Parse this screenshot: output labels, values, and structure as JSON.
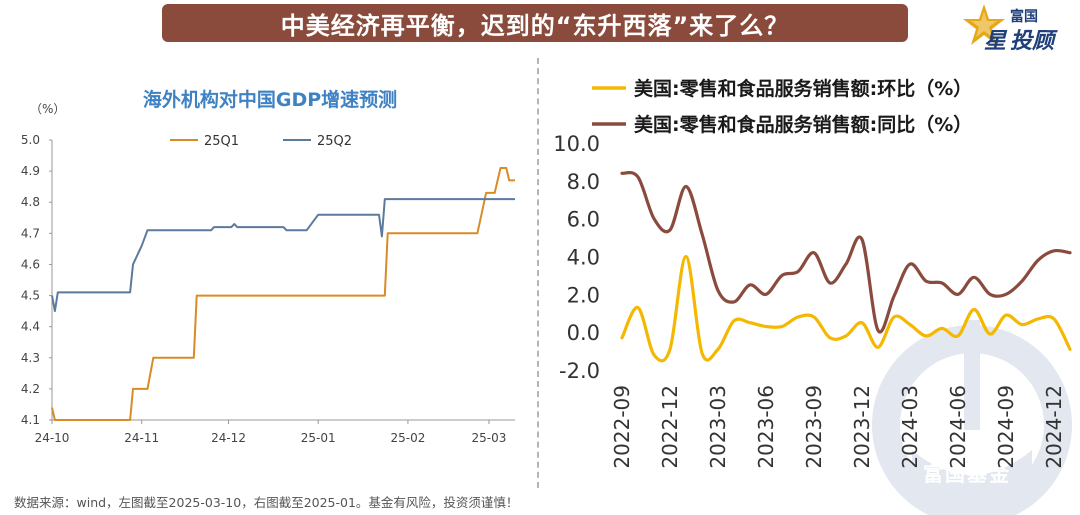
{
  "banner": {
    "title": "中美经济再平衡，迟到的“东升西落”来了么？"
  },
  "logo": {
    "line1": "富国",
    "line2_a": "星",
    "line2_b": "投顾"
  },
  "watermark": {
    "text": "富国基金"
  },
  "footer": {
    "note": "数据来源：wind，左图截至2025-03-10，右图截至2025-01。基金有风险，投资须谨慎！"
  },
  "chart_data": [
    {
      "type": "line",
      "title": "海外机构对中国GDP增速预测",
      "ylabel": "（%）",
      "ylim": [
        4.1,
        5.0
      ],
      "yticks": [
        "5.0",
        "4.9",
        "4.8",
        "4.7",
        "4.6",
        "4.5",
        "4.4",
        "4.3",
        "4.2",
        "4.1"
      ],
      "xticks": [
        "24-10",
        "24-11",
        "24-12",
        "25-01",
        "25-02",
        "25-03"
      ],
      "legend_position": "top",
      "grid": false,
      "series": [
        {
          "name": "25Q1",
          "color": "#d98b26",
          "points": [
            [
              "2024-10-01",
              4.14
            ],
            [
              "2024-10-02",
              4.1
            ],
            [
              "2024-10-28",
              4.1
            ],
            [
              "2024-10-29",
              4.2
            ],
            [
              "2024-11-03",
              4.2
            ],
            [
              "2024-11-05",
              4.3
            ],
            [
              "2024-11-19",
              4.3
            ],
            [
              "2024-11-20",
              4.5
            ],
            [
              "2025-01-24",
              4.5
            ],
            [
              "2025-01-25",
              4.7
            ],
            [
              "2025-02-25",
              4.7
            ],
            [
              "2025-02-28",
              4.83
            ],
            [
              "2025-03-03",
              4.83
            ],
            [
              "2025-03-05",
              4.91
            ],
            [
              "2025-03-07",
              4.91
            ],
            [
              "2025-03-08",
              4.87
            ],
            [
              "2025-03-10",
              4.87
            ]
          ]
        },
        {
          "name": "25Q2",
          "color": "#5b7a9c",
          "points": [
            [
              "2024-10-01",
              4.5
            ],
            [
              "2024-10-02",
              4.45
            ],
            [
              "2024-10-03",
              4.51
            ],
            [
              "2024-10-28",
              4.51
            ],
            [
              "2024-10-29",
              4.6
            ],
            [
              "2024-11-01",
              4.66
            ],
            [
              "2024-11-03",
              4.71
            ],
            [
              "2024-11-25",
              4.71
            ],
            [
              "2024-11-26",
              4.72
            ],
            [
              "2024-12-02",
              4.72
            ],
            [
              "2024-12-03",
              4.73
            ],
            [
              "2024-12-04",
              4.72
            ],
            [
              "2024-12-20",
              4.72
            ],
            [
              "2024-12-21",
              4.71
            ],
            [
              "2024-12-28",
              4.71
            ],
            [
              "2025-01-01",
              4.76
            ],
            [
              "2025-01-22",
              4.76
            ],
            [
              "2025-01-23",
              4.69
            ],
            [
              "2025-01-24",
              4.81
            ],
            [
              "2025-03-10",
              4.81
            ]
          ]
        }
      ]
    },
    {
      "type": "line",
      "ylim": [
        -2.0,
        10.0
      ],
      "yticks": [
        "10.0",
        "8.0",
        "6.0",
        "4.0",
        "2.0",
        "0.0",
        "-2.0"
      ],
      "xticks": [
        "2022-09",
        "2022-12",
        "2023-03",
        "2023-06",
        "2023-09",
        "2023-12",
        "2024-03",
        "2024-06",
        "2024-09",
        "2024-12"
      ],
      "legend_position": "top",
      "grid": false,
      "x": [
        "2022-09",
        "2022-10",
        "2022-11",
        "2022-12",
        "2023-01",
        "2023-02",
        "2023-03",
        "2023-04",
        "2023-05",
        "2023-06",
        "2023-07",
        "2023-08",
        "2023-09",
        "2023-10",
        "2023-11",
        "2023-12",
        "2024-01",
        "2024-02",
        "2024-03",
        "2024-04",
        "2024-05",
        "2024-06",
        "2024-07",
        "2024-08",
        "2024-09",
        "2024-10",
        "2024-11",
        "2024-12",
        "2025-01"
      ],
      "series": [
        {
          "name": "美国:零售和食品服务销售额:环比（%）",
          "color": "#f5b800",
          "values": [
            -0.3,
            1.3,
            -1.2,
            -0.9,
            4.0,
            -1.1,
            -0.9,
            0.6,
            0.5,
            0.3,
            0.3,
            0.8,
            0.8,
            -0.3,
            -0.2,
            0.5,
            -0.8,
            0.8,
            0.4,
            -0.2,
            0.2,
            -0.2,
            1.2,
            -0.1,
            0.9,
            0.4,
            0.7,
            0.7,
            -0.9
          ]
        },
        {
          "name": "美国:零售和食品服务销售额:同比（%）",
          "color": "#8b4a3e",
          "values": [
            8.4,
            8.2,
            6.0,
            5.4,
            7.7,
            5.2,
            2.2,
            1.6,
            2.5,
            2.0,
            3.0,
            3.2,
            4.2,
            2.6,
            3.6,
            4.9,
            0.1,
            1.9,
            3.6,
            2.7,
            2.6,
            2.0,
            2.9,
            2.0,
            2.0,
            2.7,
            3.8,
            4.3,
            4.2
          ]
        }
      ]
    }
  ],
  "colors": {
    "banner_bg": "#8a4a3c",
    "left_title": "#3f82c4",
    "series_25Q1": "#d98b26",
    "series_25Q2": "#5b7a9c",
    "series_mom": "#f5b800",
    "series_yoy": "#8b4a3e"
  },
  "icons": [
    "star-logo-icon",
    "fund-watermark-icon"
  ]
}
